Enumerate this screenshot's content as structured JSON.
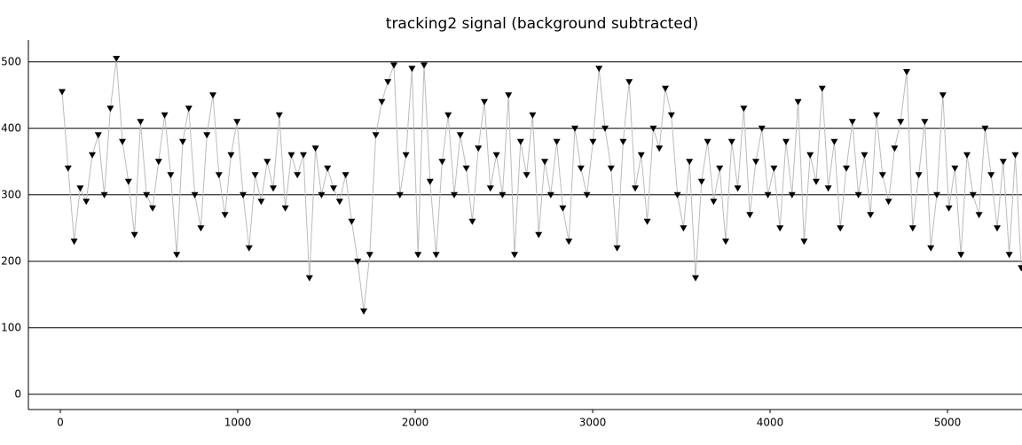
{
  "chart_data": {
    "type": "line",
    "title": "tracking2 signal (background subtracted)",
    "x": [
      10,
      44,
      78,
      112,
      146,
      180,
      214,
      248,
      282,
      316,
      350,
      384,
      418,
      452,
      486,
      520,
      554,
      588,
      622,
      656,
      690,
      724,
      758,
      792,
      826,
      860,
      894,
      928,
      962,
      996,
      1030,
      1064,
      1098,
      1132,
      1166,
      1200,
      1234,
      1268,
      1302,
      1336,
      1370,
      1404,
      1438,
      1472,
      1506,
      1540,
      1574,
      1608,
      1642,
      1676,
      1710,
      1744,
      1778,
      1812,
      1846,
      1880,
      1914,
      1948,
      1982,
      2016,
      2050,
      2084,
      2118,
      2152,
      2186,
      2220,
      2254,
      2288,
      2322,
      2356,
      2390,
      2424,
      2458,
      2492,
      2526,
      2560,
      2594,
      2628,
      2662,
      2696,
      2730,
      2764,
      2798,
      2832,
      2866,
      2900,
      2934,
      2968,
      3002,
      3036,
      3070,
      3104,
      3138,
      3172,
      3206,
      3240,
      3274,
      3308,
      3342,
      3376,
      3410,
      3444,
      3478,
      3512,
      3546,
      3580,
      3614,
      3648,
      3682,
      3716,
      3750,
      3784,
      3818,
      3852,
      3886,
      3920,
      3954,
      3988,
      4022,
      4056,
      4090,
      4124,
      4158,
      4192,
      4226,
      4260,
      4294,
      4328,
      4362,
      4396,
      4430,
      4464,
      4498,
      4532,
      4566,
      4600,
      4634,
      4668,
      4702,
      4736,
      4770,
      4804,
      4838,
      4872,
      4906,
      4940,
      4974,
      5008,
      5042,
      5076,
      5110,
      5144,
      5178,
      5212,
      5246,
      5280,
      5314,
      5348,
      5382,
      5416
    ],
    "series": [
      {
        "color": "#000000",
        "line_color": "#bbbbbb",
        "marker": "triangle-down",
        "values": [
          455,
          340,
          230,
          310,
          290,
          360,
          390,
          300,
          430,
          505,
          380,
          320,
          240,
          410,
          300,
          280,
          350,
          420,
          330,
          210,
          380,
          430,
          300,
          250,
          390,
          450,
          330,
          270,
          360,
          410,
          300,
          220,
          330,
          290,
          350,
          310,
          420,
          280,
          360,
          330,
          360,
          175,
          370,
          300,
          340,
          310,
          290,
          330,
          260,
          200,
          125,
          210,
          390,
          440,
          470,
          495,
          300,
          360,
          490,
          210,
          495,
          320,
          210,
          350,
          420,
          300,
          390,
          340,
          260,
          370,
          440,
          310,
          360,
          300,
          450,
          210,
          380,
          330,
          420,
          240,
          350,
          300,
          380,
          280,
          230,
          400,
          340,
          300,
          380,
          490,
          400,
          340,
          220,
          380,
          470,
          310,
          360,
          260,
          400,
          370,
          460,
          420,
          300,
          250,
          350,
          175,
          320,
          380,
          290,
          340,
          230,
          380,
          310,
          430,
          270,
          350,
          400,
          300,
          340,
          250,
          380,
          300,
          440,
          230,
          360,
          320,
          460,
          310,
          380,
          250,
          340,
          410,
          300,
          360,
          270,
          420,
          330,
          290,
          370,
          410,
          485,
          250,
          330,
          410,
          220,
          300,
          450,
          280,
          340,
          210,
          360,
          300,
          270,
          400,
          330,
          250,
          350,
          210,
          360,
          190
        ]
      }
    ],
    "xlim": [
      -180,
      5420
    ],
    "ylim": [
      -23,
      533
    ],
    "xticks": [
      0,
      1000,
      2000,
      3000,
      4000,
      5000
    ],
    "yticks": [
      0,
      100,
      200,
      300,
      400,
      500
    ],
    "grid": true
  }
}
